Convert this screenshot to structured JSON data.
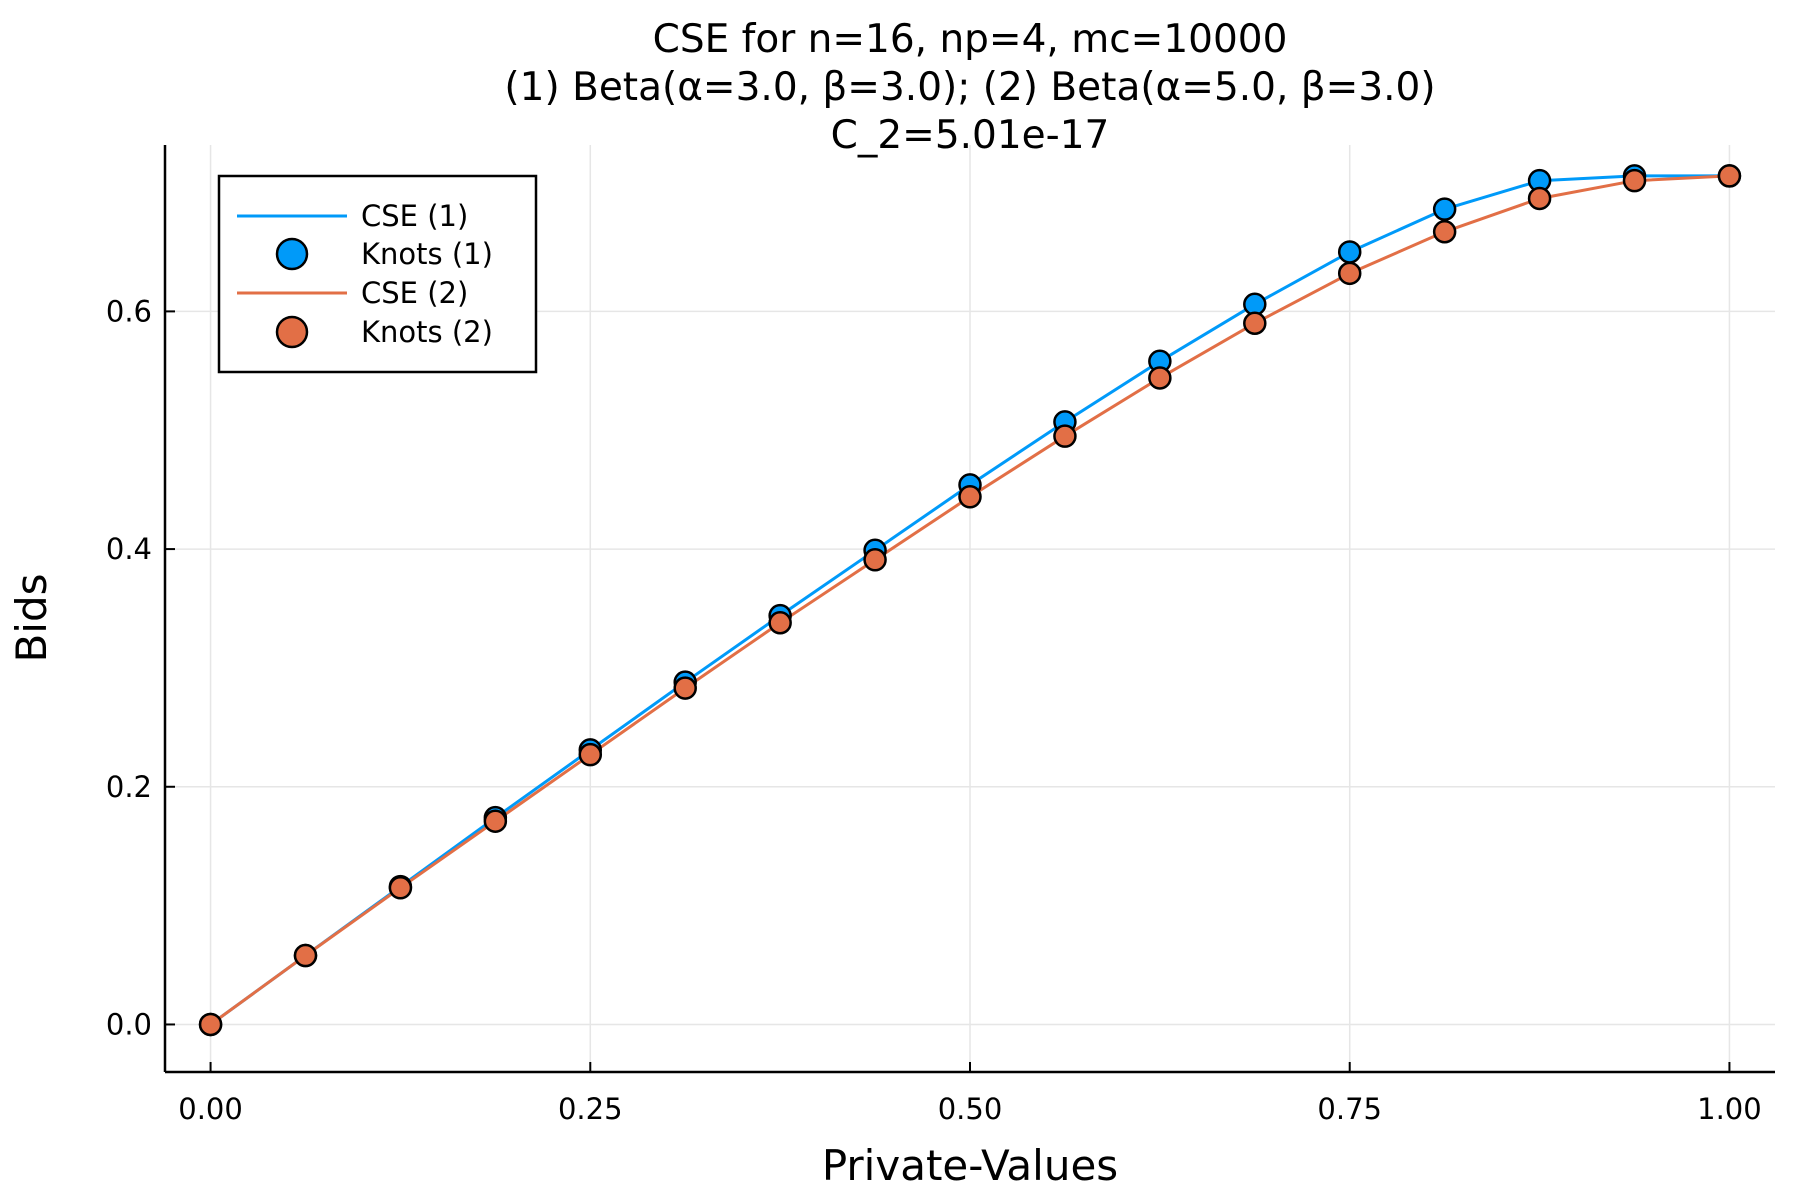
{
  "chart_data": {
    "type": "line",
    "title": [
      "CSE for n=16, np=4, mc=10000",
      "(1) Beta(α=3.0, β=3.0); (2) Beta(α=5.0, β=3.0)",
      "C_2=5.01e-17"
    ],
    "xlabel": "Private-Values",
    "ylabel": "Bids",
    "xlim": [
      -0.03,
      1.03
    ],
    "ylim": [
      -0.04,
      0.74
    ],
    "xticks": [
      0.0,
      0.25,
      0.5,
      0.75,
      1.0
    ],
    "xtick_labels": [
      "0.00",
      "0.25",
      "0.50",
      "0.75",
      "1.00"
    ],
    "yticks": [
      0.0,
      0.2,
      0.4,
      0.6
    ],
    "ytick_labels": [
      "0.0",
      "0.2",
      "0.4",
      "0.6"
    ],
    "grid": true,
    "legend_position": "top-left",
    "series": [
      {
        "name": "CSE (1)",
        "knots_name": "Knots (1)",
        "color": "#009af9",
        "x": [
          0.0,
          0.0625,
          0.125,
          0.1875,
          0.25,
          0.3125,
          0.375,
          0.4375,
          0.5,
          0.5625,
          0.625,
          0.6875,
          0.75,
          0.8125,
          0.875,
          0.9375,
          1.0
        ],
        "y": [
          0.0,
          0.058,
          0.116,
          0.174,
          0.231,
          0.288,
          0.344,
          0.399,
          0.454,
          0.507,
          0.558,
          0.606,
          0.65,
          0.686,
          0.71,
          0.714,
          0.714
        ]
      },
      {
        "name": "CSE (2)",
        "knots_name": "Knots (2)",
        "color": "#e26f46",
        "x": [
          0.0,
          0.0625,
          0.125,
          0.1875,
          0.25,
          0.3125,
          0.375,
          0.4375,
          0.5,
          0.5625,
          0.625,
          0.6875,
          0.75,
          0.8125,
          0.875,
          0.9375,
          1.0
        ],
        "y": [
          0.0,
          0.058,
          0.115,
          0.171,
          0.227,
          0.283,
          0.338,
          0.391,
          0.444,
          0.495,
          0.544,
          0.59,
          0.632,
          0.667,
          0.695,
          0.71,
          0.714
        ]
      }
    ]
  }
}
